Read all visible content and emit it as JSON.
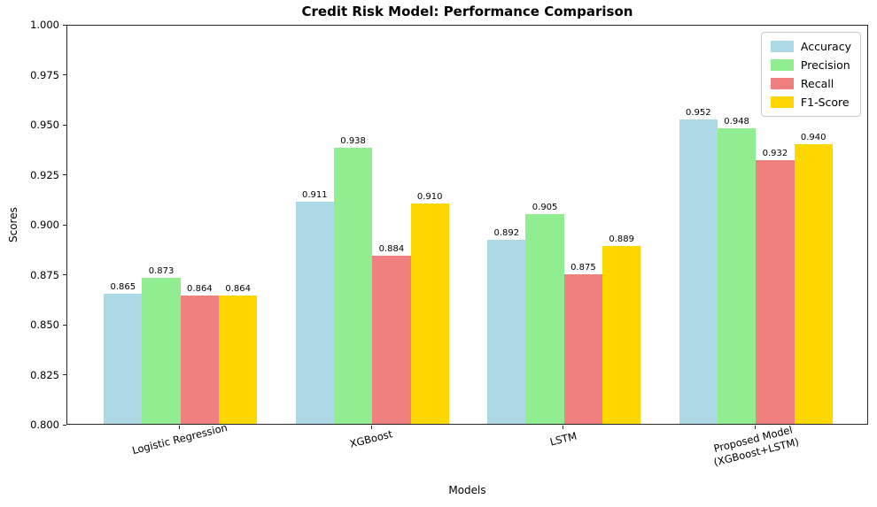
{
  "chart_data": {
    "type": "bar",
    "title": "Credit Risk Model: Performance Comparison",
    "xlabel": "Models",
    "ylabel": "Scores",
    "ylim": [
      0.8,
      1.0
    ],
    "yticks": [
      "0.800",
      "0.825",
      "0.850",
      "0.875",
      "0.900",
      "0.925",
      "0.950",
      "0.975",
      "1.000"
    ],
    "grid": false,
    "legend_position": "upper right",
    "legend_entries": [
      "Accuracy",
      "Precision",
      "Recall",
      "F1-Score"
    ],
    "categories": [
      "Logistic Regression",
      "XGBoost",
      "LSTM",
      "Proposed Model\n(XGBoost+LSTM)"
    ],
    "series": [
      {
        "name": "Accuracy",
        "color": "#ADD8E6",
        "values": [
          0.865,
          0.911,
          0.892,
          0.952
        ]
      },
      {
        "name": "Precision",
        "color": "#90EE90",
        "values": [
          0.873,
          0.938,
          0.905,
          0.948
        ]
      },
      {
        "name": "Recall",
        "color": "#F08080",
        "values": [
          0.864,
          0.884,
          0.875,
          0.932
        ]
      },
      {
        "name": "F1-Score",
        "color": "#FFD700",
        "values": [
          0.864,
          0.91,
          0.889,
          0.94
        ]
      }
    ],
    "bar_label_decimals": 3,
    "colors": {
      "axis": "#262626",
      "text": "#000000",
      "legend_border": "#cccccc",
      "background": "#ffffff"
    }
  }
}
